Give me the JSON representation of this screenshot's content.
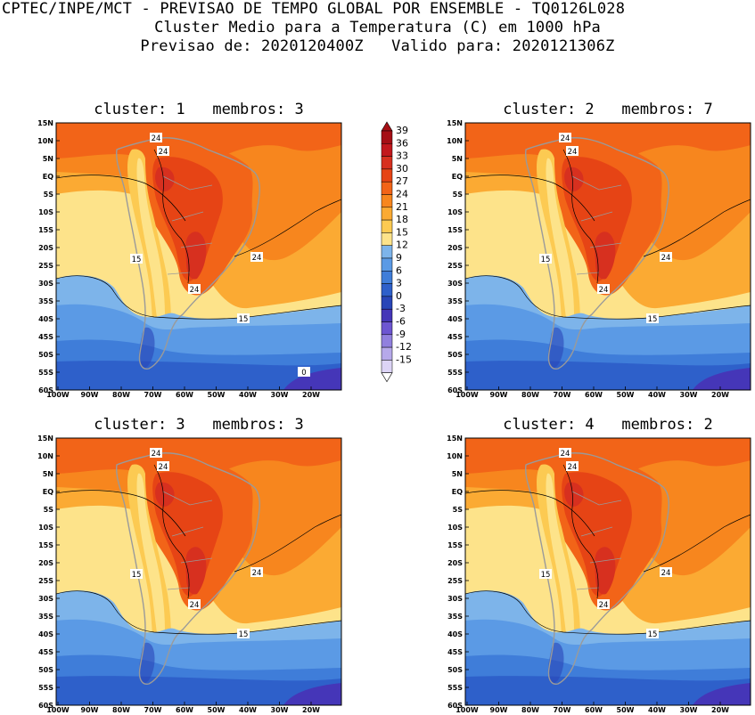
{
  "header": {
    "line1": "CPTEC/INPE/MCT - PREVISAO DE TEMPO GLOBAL POR ENSEMBLE - TQ0126L028",
    "line2": "Cluster Medio para a Temperatura (C) em 1000 hPa",
    "line3": "Previsao de: 2020120400Z   Valido para: 2020121306Z"
  },
  "panels": [
    {
      "title": "cluster: 1   membros: 3",
      "contour_labels": [
        "24",
        "24",
        "15",
        "24",
        "24",
        "15",
        "0"
      ]
    },
    {
      "title": "cluster: 2   membros: 7",
      "contour_labels": [
        "24",
        "24",
        "15",
        "24",
        "24",
        "15"
      ]
    },
    {
      "title": "cluster: 3   membros: 3",
      "contour_labels": [
        "24",
        "24",
        "15",
        "24",
        "24",
        "15"
      ]
    },
    {
      "title": "cluster: 4   membros: 2",
      "contour_labels": [
        "24",
        "24",
        "15",
        "24",
        "24",
        "15"
      ]
    }
  ],
  "lat_labels": [
    "15N",
    "10N",
    "5N",
    "EQ",
    "5S",
    "10S",
    "15S",
    "20S",
    "25S",
    "30S",
    "35S",
    "40S",
    "45S",
    "50S",
    "55S",
    "60S"
  ],
  "lon_labels": [
    "100W",
    "90W",
    "80W",
    "70W",
    "60W",
    "50W",
    "40W",
    "30W",
    "20W"
  ],
  "colorbar": {
    "labels": [
      "39",
      "36",
      "33",
      "30",
      "27",
      "24",
      "21",
      "18",
      "15",
      "12",
      "9",
      "6",
      "3",
      "0",
      "-3",
      "-6",
      "-9",
      "-12",
      "-15"
    ],
    "colors": [
      "#a50f15",
      "#c2181d",
      "#d7301f",
      "#e64415",
      "#f26418",
      "#f7861e",
      "#fbaa33",
      "#fcca52",
      "#fde38a",
      "#7db4ea",
      "#5b9ae5",
      "#3f7dd9",
      "#2e60ca",
      "#2946b8",
      "#4536b8",
      "#6d56d1",
      "#9180de",
      "#b6a9ea",
      "#dcd4f6"
    ]
  }
}
